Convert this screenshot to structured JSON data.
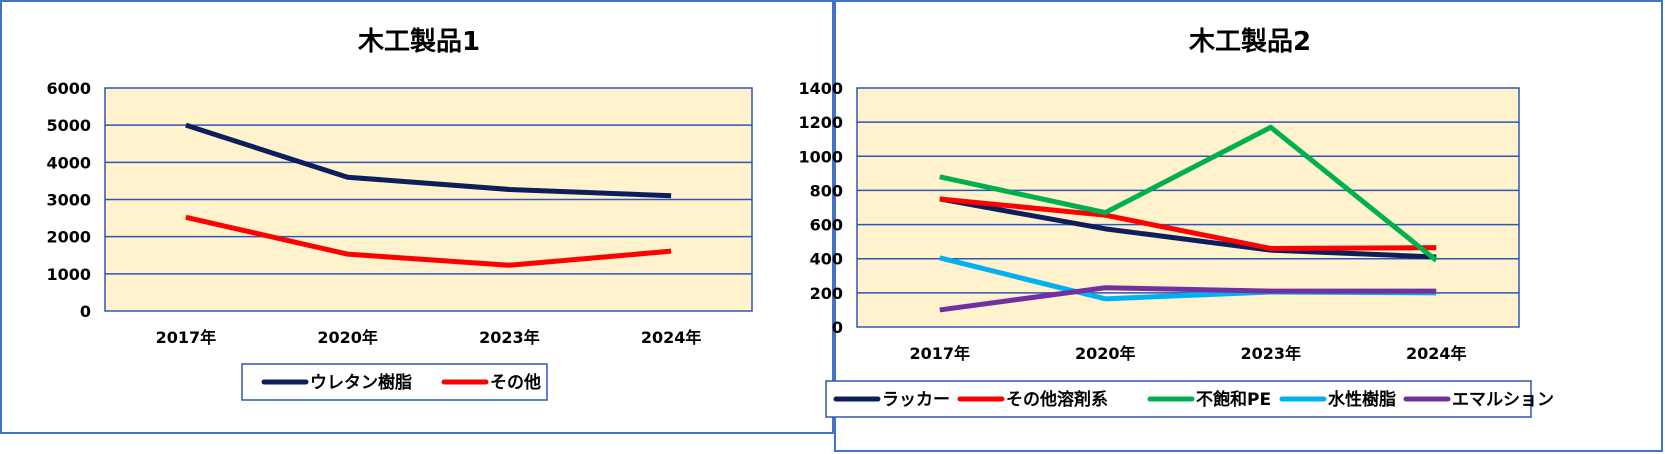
{
  "chart_data": [
    {
      "type": "line",
      "title": "木工製品1",
      "categories": [
        "2017年",
        "2020年",
        "2023年",
        "2024年"
      ],
      "series": [
        {
          "name": "ウレタン樹脂",
          "values": [
            5000,
            3600,
            3270,
            3100
          ],
          "color": "#0c1f5c"
        },
        {
          "name": "その他",
          "values": [
            2520,
            1530,
            1230,
            1610
          ],
          "color": "#ff0000"
        }
      ],
      "ylim": [
        0,
        6000
      ],
      "yticks": [
        0,
        1000,
        2000,
        3000,
        4000,
        5000,
        6000
      ],
      "grid": true,
      "legend": "bottom",
      "plot_background": "#fff2cc",
      "grid_color": "#2f55b5"
    },
    {
      "type": "line",
      "title": "木工製品2",
      "categories": [
        "2017年",
        "2020年",
        "2023年",
        "2024年"
      ],
      "series": [
        {
          "name": "ラッカー",
          "values": [
            750,
            575,
            450,
            410
          ],
          "color": "#0c1f5c"
        },
        {
          "name": "その他溶剤系",
          "values": [
            750,
            655,
            460,
            465
          ],
          "color": "#ff0000"
        },
        {
          "name": "不飽和PE",
          "values": [
            880,
            670,
            1170,
            390
          ],
          "color": "#00b050"
        },
        {
          "name": "水性樹脂",
          "values": [
            405,
            165,
            205,
            200
          ],
          "color": "#00b0f0"
        },
        {
          "name": "エマルション",
          "values": [
            100,
            230,
            210,
            210
          ],
          "color": "#7030a0"
        }
      ],
      "ylim": [
        0,
        1400
      ],
      "yticks": [
        0,
        200,
        400,
        600,
        800,
        1000,
        1200,
        1400
      ],
      "grid": true,
      "legend": "bottom",
      "plot_background": "#fff2cc",
      "grid_color": "#2f55b5"
    }
  ]
}
